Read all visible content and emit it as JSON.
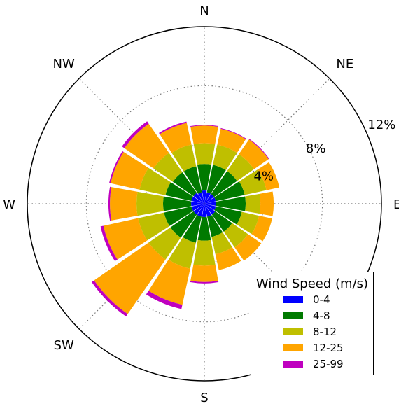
{
  "chart_data": {
    "type": "windrose",
    "directions": [
      "N",
      "NNE",
      "NE",
      "ENE",
      "E",
      "ESE",
      "SE",
      "SSE",
      "S",
      "SSW",
      "SW",
      "WSW",
      "W",
      "WNW",
      "NW",
      "NNW"
    ],
    "compass_labels": [
      "N",
      "NE",
      "E",
      "S",
      "SW",
      "W",
      "NW"
    ],
    "radial_ticks": [
      "4%",
      "8%",
      "12%"
    ],
    "radial_values": [
      4,
      8,
      12
    ],
    "rmax": 12,
    "legend": {
      "title": "Wind Speed (m/s)",
      "placement": "lower-right",
      "bins": [
        "0-4",
        "4-8",
        "8-12",
        "12-25",
        "25-99"
      ],
      "colors": [
        "#0000ff",
        "#007a00",
        "#bfbf00",
        "#ffa500",
        "#bf00bf"
      ]
    },
    "cumulative_percent": [
      [
        0.9,
        2.7,
        4.1,
        5.3,
        5.35
      ],
      [
        0.8,
        2.7,
        4.1,
        5.2,
        5.25
      ],
      [
        0.8,
        2.7,
        4.1,
        5.3,
        5.35
      ],
      [
        0.8,
        2.8,
        4.3,
        5.2,
        5.2
      ],
      [
        0.8,
        2.8,
        3.8,
        4.7,
        4.7
      ],
      [
        0.8,
        2.6,
        3.8,
        4.7,
        4.7
      ],
      [
        0.9,
        2.3,
        3.6,
        4.7,
        4.7
      ],
      [
        0.9,
        2.3,
        3.5,
        4.6,
        4.6
      ],
      [
        0.9,
        2.5,
        4.2,
        5.3,
        5.4
      ],
      [
        0.9,
        2.7,
        4.5,
        7.0,
        7.3
      ],
      [
        0.9,
        2.8,
        4.6,
        9.1,
        9.3
      ],
      [
        0.9,
        2.8,
        4.6,
        7.0,
        7.2
      ],
      [
        0.9,
        2.8,
        4.6,
        6.4,
        6.5
      ],
      [
        0.9,
        2.7,
        4.5,
        6.5,
        6.6
      ],
      [
        0.9,
        2.6,
        4.2,
        6.6,
        6.8
      ],
      [
        0.8,
        2.6,
        4.1,
        5.6,
        5.7
      ]
    ]
  }
}
